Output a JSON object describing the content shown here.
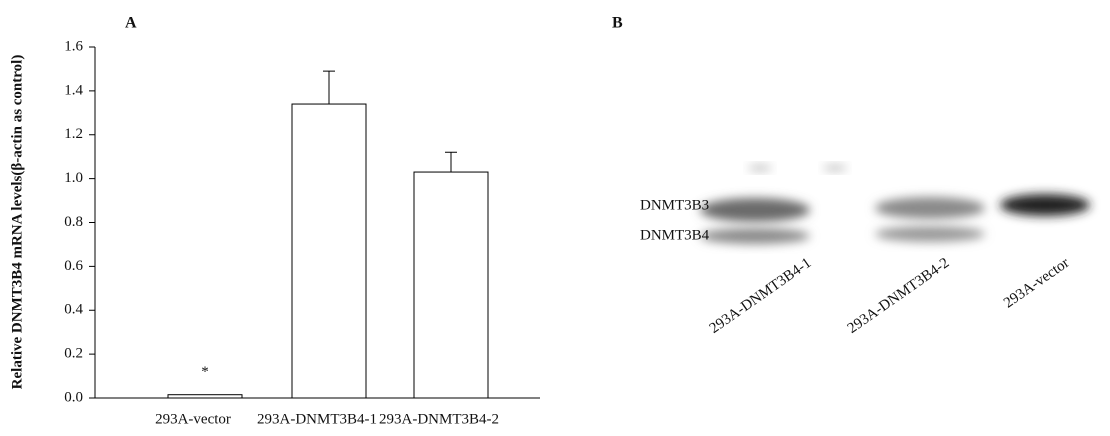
{
  "chart_data": {
    "type": "bar",
    "panel_label": "A",
    "ylabel": "Relative DNMT3B4 mRNA levels(β-actin as control)",
    "categories": [
      "293A-vector",
      "293A-DNMT3B4-1",
      "293A-DNMT3B4-2"
    ],
    "values": [
      0.015,
      1.34,
      1.03
    ],
    "errors": [
      null,
      0.15,
      0.09
    ],
    "annotations": [
      "*",
      null,
      null
    ],
    "color": "#ffffff",
    "ylim": [
      0,
      1.6
    ],
    "yticks": [
      {
        "value": 0,
        "label": "0.0"
      },
      {
        "value": 0.2,
        "label": "0.2"
      },
      {
        "value": 0.4,
        "label": "0.4"
      },
      {
        "value": 0.6,
        "label": "0.6"
      },
      {
        "value": 0.8,
        "label": "0.8"
      },
      {
        "value": 1,
        "label": "1.0"
      },
      {
        "value": 1.2,
        "label": "1.2"
      },
      {
        "value": 1.4,
        "label": "1.4"
      },
      {
        "value": 1.6,
        "label": "1.6"
      }
    ],
    "grid": false
  },
  "blot": {
    "panel_label": "B",
    "band_labels": [
      "DNMT3B3",
      "DNMT3B4"
    ],
    "lane_labels": [
      "293A-DNMT3B4-1",
      "293A-DNMT3B4-2",
      "293A-vector"
    ]
  }
}
